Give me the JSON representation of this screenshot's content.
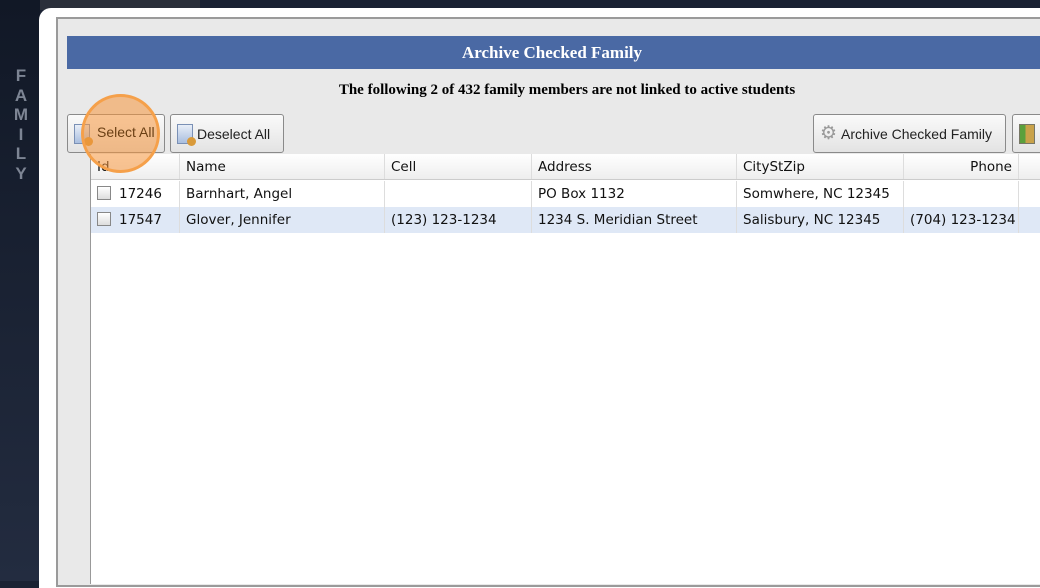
{
  "sidebar": {
    "vertical_label": [
      "F",
      "A",
      "M",
      "I",
      "L",
      "Y"
    ]
  },
  "dialog": {
    "title": "Archive Checked Family",
    "subtitle": "The following 2 of 432 family members are not linked to active students"
  },
  "toolbar": {
    "select_all": "Select All",
    "deselect_all": "Deselect All",
    "archive": "Archive Checked Family"
  },
  "table": {
    "columns": [
      "Id",
      "Name",
      "Cell",
      "Address",
      "CityStZip",
      "Phone"
    ],
    "rows": [
      {
        "checked": false,
        "id": "17246",
        "name": "Barnhart, Angel",
        "cell": "",
        "address": "PO Box 1132",
        "citystzip": "Somwhere, NC 12345",
        "phone": ""
      },
      {
        "checked": false,
        "id": "17547",
        "name": "Glover, Jennifer",
        "cell": "(123) 123-1234",
        "address": "1234 S. Meridian Street",
        "citystzip": "Salisbury, NC 12345",
        "phone": "(704) 123-1234"
      }
    ]
  },
  "colors": {
    "header": "#4a69a4",
    "selected_row": "#dfe8f6",
    "highlight": "#f5a04a"
  }
}
